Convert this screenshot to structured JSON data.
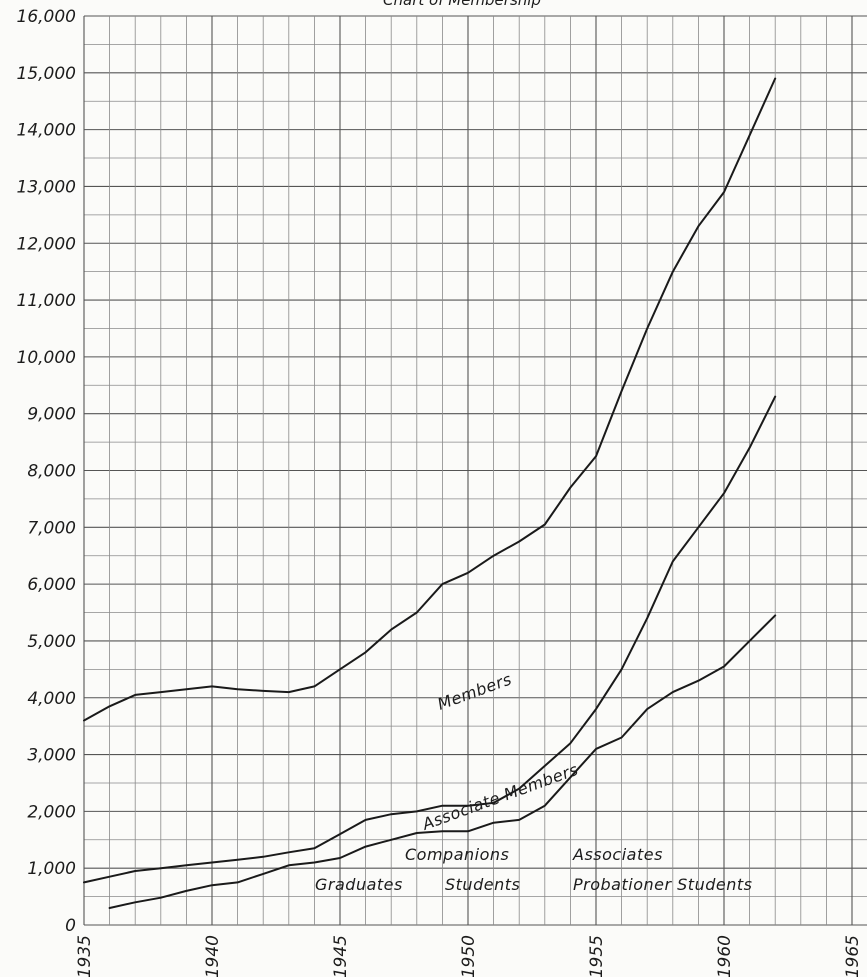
{
  "chart_data": {
    "type": "line",
    "title": "Chart of Membership",
    "xlabel": "",
    "ylabel": "",
    "xlim": [
      1935,
      1965
    ],
    "ylim": [
      0,
      16000
    ],
    "grid": true,
    "x_ticks": [
      "1935",
      "1940",
      "1945",
      "1950",
      "1955",
      "1960",
      "1965"
    ],
    "y_ticks": [
      "0",
      "1,000",
      "2,000",
      "3,000",
      "4,000",
      "5,000",
      "6,000",
      "7,000",
      "8,000",
      "9,000",
      "10,000",
      "11,000",
      "12,000",
      "13,000",
      "14,000",
      "15,000",
      "16,000"
    ],
    "series": [
      {
        "name": "",
        "x": [
          1935,
          1936,
          1937,
          1938,
          1939,
          1940,
          1941,
          1942,
          1943,
          1944,
          1945,
          1946,
          1947,
          1948,
          1949,
          1950,
          1951,
          1952,
          1953,
          1954,
          1955,
          1956,
          1957,
          1958,
          1959,
          1960,
          1961,
          1962
        ],
        "values": [
          3600,
          3850,
          4050,
          4100,
          4150,
          4200,
          4150,
          4120,
          4100,
          4200,
          4500,
          4800,
          5200,
          5500,
          6000,
          6200,
          6500,
          6750,
          7050,
          7700,
          8250,
          9400,
          10500,
          11500,
          12300,
          12900,
          13900,
          14900
        ]
      },
      {
        "name": "",
        "x": [
          1935,
          1936,
          1937,
          1938,
          1939,
          1940,
          1941,
          1942,
          1943,
          1944,
          1945,
          1946,
          1947,
          1948,
          1949,
          1950,
          1951,
          1952,
          1953,
          1954,
          1955,
          1956,
          1957,
          1958,
          1959,
          1960,
          1961,
          1962
        ],
        "values": [
          750,
          850,
          950,
          1000,
          1050,
          1100,
          1150,
          1200,
          1280,
          1350,
          1600,
          1850,
          1950,
          2000,
          2100,
          2100,
          2150,
          2400,
          2800,
          3200,
          3800,
          4500,
          5400,
          6400,
          7000,
          7600,
          8400,
          9300
        ]
      },
      {
        "name": "",
        "x": [
          1936,
          1937,
          1938,
          1939,
          1940,
          1941,
          1942,
          1943,
          1944,
          1945,
          1946,
          1947,
          1948,
          1949,
          1950,
          1951,
          1952,
          1953,
          1954,
          1955,
          1956,
          1957,
          1958,
          1959,
          1960,
          1961,
          1962
        ],
        "values": [
          300,
          400,
          480,
          600,
          700,
          750,
          900,
          1050,
          1100,
          1180,
          1380,
          1500,
          1620,
          1650,
          1650,
          1800,
          1850,
          2100,
          2600,
          3100,
          3300,
          3800,
          4100,
          4300,
          4550,
          5000,
          5450
        ]
      }
    ],
    "annotations": {
      "members": "Members",
      "associate_members": "Associate Members",
      "companions": "Companions",
      "associates": "Associates",
      "graduates": "Graduates",
      "students": "Students",
      "probationer_students": "Probationer Students"
    }
  }
}
